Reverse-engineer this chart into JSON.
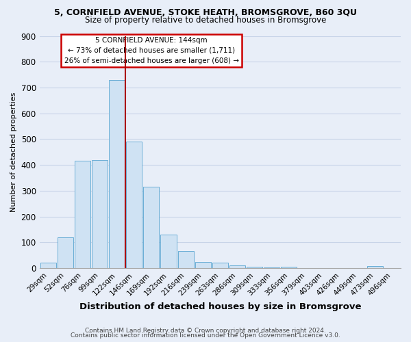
{
  "title1": "5, CORNFIELD AVENUE, STOKE HEATH, BROMSGROVE, B60 3QU",
  "title2": "Size of property relative to detached houses in Bromsgrove",
  "xlabel": "Distribution of detached houses by size in Bromsgrove",
  "ylabel": "Number of detached properties",
  "footer1": "Contains HM Land Registry data © Crown copyright and database right 2024.",
  "footer2": "Contains public sector information licensed under the Open Government Licence v3.0.",
  "categories": [
    "29sqm",
    "52sqm",
    "76sqm",
    "99sqm",
    "122sqm",
    "146sqm",
    "169sqm",
    "192sqm",
    "216sqm",
    "239sqm",
    "263sqm",
    "286sqm",
    "309sqm",
    "333sqm",
    "356sqm",
    "379sqm",
    "403sqm",
    "426sqm",
    "449sqm",
    "473sqm",
    "496sqm"
  ],
  "values": [
    20,
    120,
    415,
    420,
    730,
    490,
    315,
    130,
    65,
    25,
    22,
    10,
    5,
    3,
    6,
    0,
    0,
    0,
    0,
    8,
    0
  ],
  "bar_color": "#cfe2f3",
  "bar_edge_color": "#6aaed6",
  "marker_index": 4,
  "marker_color": "#aa0000",
  "marker_label": "5 CORNFIELD AVENUE: 144sqm",
  "annotation_line1": "← 73% of detached houses are smaller (1,711)",
  "annotation_line2": "26% of semi-detached houses are larger (608) →",
  "annotation_box_color": "#ffffff",
  "annotation_box_edge": "#cc0000",
  "ylim": [
    0,
    900
  ],
  "yticks": [
    0,
    100,
    200,
    300,
    400,
    500,
    600,
    700,
    800,
    900
  ],
  "grid_color": "#c8d4e8",
  "bg_color": "#e8eef8"
}
